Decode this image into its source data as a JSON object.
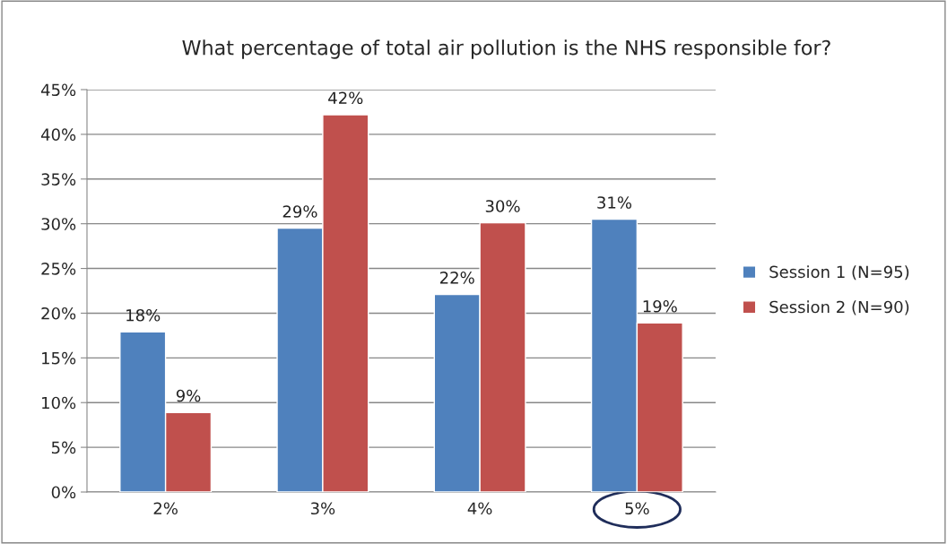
{
  "chart_data": {
    "type": "bar",
    "title": "What percentage of total air pollution is the NHS responsible for?",
    "categories": [
      "2%",
      "3%",
      "4%",
      "5%"
    ],
    "series": [
      {
        "name": "Session 1 (N=95)",
        "color": "#4f81bd",
        "values": [
          17.9,
          29.5,
          22.1,
          30.5
        ],
        "value_labels": [
          "18%",
          "29%",
          "22%",
          "31%"
        ]
      },
      {
        "name": "Session 2 (N=90)",
        "color": "#c0504d",
        "values": [
          8.9,
          42.2,
          30.1,
          18.9
        ],
        "value_labels": [
          "9%",
          "42%",
          "30%",
          "19%"
        ]
      }
    ],
    "ylim": [
      0,
      45
    ],
    "yticks": [
      {
        "value": 0,
        "label": "0%"
      },
      {
        "value": 5,
        "label": "5%"
      },
      {
        "value": 10,
        "label": "10%"
      },
      {
        "value": 15,
        "label": "15%"
      },
      {
        "value": 20,
        "label": "20%"
      },
      {
        "value": 25,
        "label": "25%"
      },
      {
        "value": 30,
        "label": "30%"
      },
      {
        "value": 35,
        "label": "35%"
      },
      {
        "value": 40,
        "label": "40%"
      },
      {
        "value": 45,
        "label": "45%"
      }
    ],
    "grid": "y",
    "legend": "right"
  }
}
